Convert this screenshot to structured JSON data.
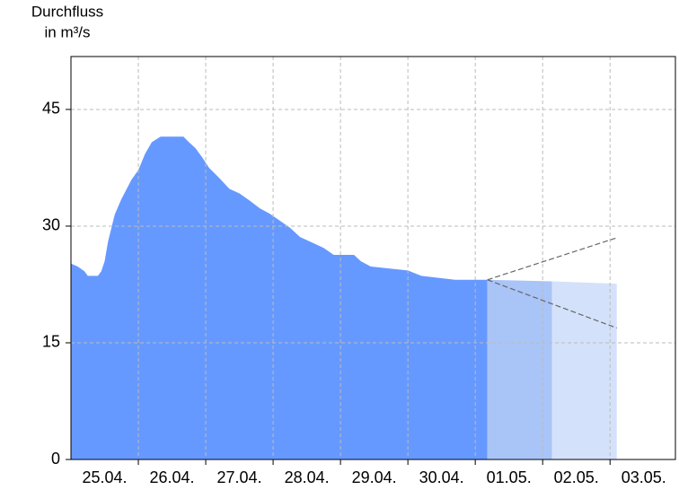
{
  "chart_data": {
    "type": "area",
    "y_label": [
      "Durchfluss",
      "in m³/s"
    ],
    "xlim": [
      0,
      8.97
    ],
    "xticks": [
      {
        "value": 0.5,
        "label": "25.04."
      },
      {
        "value": 1.5,
        "label": "26.04."
      },
      {
        "value": 2.5,
        "label": "27.04."
      },
      {
        "value": 3.5,
        "label": "28.04."
      },
      {
        "value": 4.5,
        "label": "29.04."
      },
      {
        "value": 5.5,
        "label": "30.04."
      },
      {
        "value": 6.5,
        "label": "01.05."
      },
      {
        "value": 7.5,
        "label": "02.05."
      },
      {
        "value": 8.5,
        "label": "03.05."
      }
    ],
    "ylim": [
      0,
      51.8
    ],
    "yticks": [
      0,
      15,
      30,
      45
    ],
    "grid": true,
    "series": [
      {
        "color": "#6699ff",
        "style": "area",
        "x": [
          0,
          0.1,
          0.2,
          0.25,
          0.4,
          0.45,
          0.5,
          0.55,
          0.65,
          0.75,
          0.9,
          1.0,
          1.1,
          1.2,
          1.33,
          1.67,
          1.75,
          1.85,
          1.95,
          2.05,
          2.2,
          2.35,
          2.5,
          2.65,
          2.8,
          2.95,
          3.1,
          3.25,
          3.4,
          3.6,
          3.75,
          3.9,
          4.2,
          4.3,
          4.45,
          5.0,
          5.2,
          5.7,
          6.18
        ],
        "values": [
          25.2,
          24.8,
          24.2,
          23.6,
          23.6,
          24.2,
          25.5,
          28,
          31.5,
          33.5,
          36,
          37.2,
          39.3,
          40.8,
          41.5,
          41.5,
          40.8,
          40,
          38.8,
          37.5,
          36.2,
          34.8,
          34.2,
          33.3,
          32.3,
          31.6,
          30.7,
          29.8,
          28.6,
          27.8,
          27.2,
          26.3,
          26.3,
          25.5,
          24.8,
          24.3,
          23.6,
          23.1,
          23.1
        ]
      },
      {
        "color": "#a9c4f7",
        "style": "area",
        "x": [
          6.18,
          7.14
        ],
        "values": [
          23.1,
          22.9
        ]
      },
      {
        "color": "#d4e1fa",
        "style": "area",
        "x": [
          7.14,
          8.1
        ],
        "values": [
          22.9,
          22.6
        ]
      },
      {
        "color": "#666666",
        "style": "dashed",
        "x": [
          6.18,
          8.1
        ],
        "values": [
          23.1,
          28.5
        ]
      },
      {
        "color": "#666666",
        "style": "dashed",
        "x": [
          6.18,
          8.1
        ],
        "values": [
          23.1,
          16.9
        ]
      }
    ]
  }
}
